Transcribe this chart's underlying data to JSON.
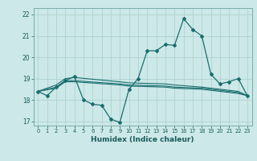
{
  "title": "",
  "xlabel": "Humidex (Indice chaleur)",
  "bg_color": "#cce8e8",
  "grid_color": "#aacece",
  "line_color": "#1a6e6e",
  "xlim": [
    -0.5,
    23.5
  ],
  "ylim": [
    16.8,
    22.3
  ],
  "yticks": [
    17,
    18,
    19,
    20,
    21,
    22
  ],
  "xticks": [
    0,
    1,
    2,
    3,
    4,
    5,
    6,
    7,
    8,
    9,
    10,
    11,
    12,
    13,
    14,
    15,
    16,
    17,
    18,
    19,
    20,
    21,
    22,
    23
  ],
  "line1_x": [
    0,
    1,
    2,
    3,
    4,
    5,
    6,
    7,
    8,
    9,
    10,
    11,
    12,
    13,
    14,
    15,
    16,
    17,
    18,
    19,
    20,
    21,
    22,
    23
  ],
  "line1_y": [
    18.4,
    18.2,
    18.6,
    18.9,
    19.1,
    18.0,
    17.8,
    17.75,
    17.1,
    16.95,
    18.5,
    19.0,
    20.3,
    20.3,
    20.6,
    20.55,
    21.8,
    21.3,
    21.0,
    19.2,
    18.75,
    18.85,
    19.0,
    18.2
  ],
  "line2_x": [
    0,
    2,
    3,
    4,
    9,
    10,
    14,
    15,
    18,
    19,
    20,
    21,
    22,
    23
  ],
  "line2_y": [
    18.4,
    18.55,
    18.85,
    18.85,
    18.7,
    18.65,
    18.6,
    18.55,
    18.5,
    18.45,
    18.4,
    18.35,
    18.3,
    18.2
  ],
  "line3_x": [
    0,
    2,
    3,
    4,
    9,
    10,
    14,
    15,
    18,
    19,
    20,
    21,
    22,
    23
  ],
  "line3_y": [
    18.4,
    18.6,
    18.9,
    18.9,
    18.75,
    18.7,
    18.65,
    18.6,
    18.55,
    18.5,
    18.45,
    18.4,
    18.35,
    18.2
  ],
  "line4_x": [
    0,
    2,
    3,
    4,
    9,
    10,
    14,
    15,
    18,
    19,
    20,
    21,
    22,
    23
  ],
  "line4_y": [
    18.4,
    18.7,
    19.0,
    19.05,
    18.85,
    18.8,
    18.75,
    18.7,
    18.6,
    18.55,
    18.5,
    18.45,
    18.4,
    18.2
  ]
}
